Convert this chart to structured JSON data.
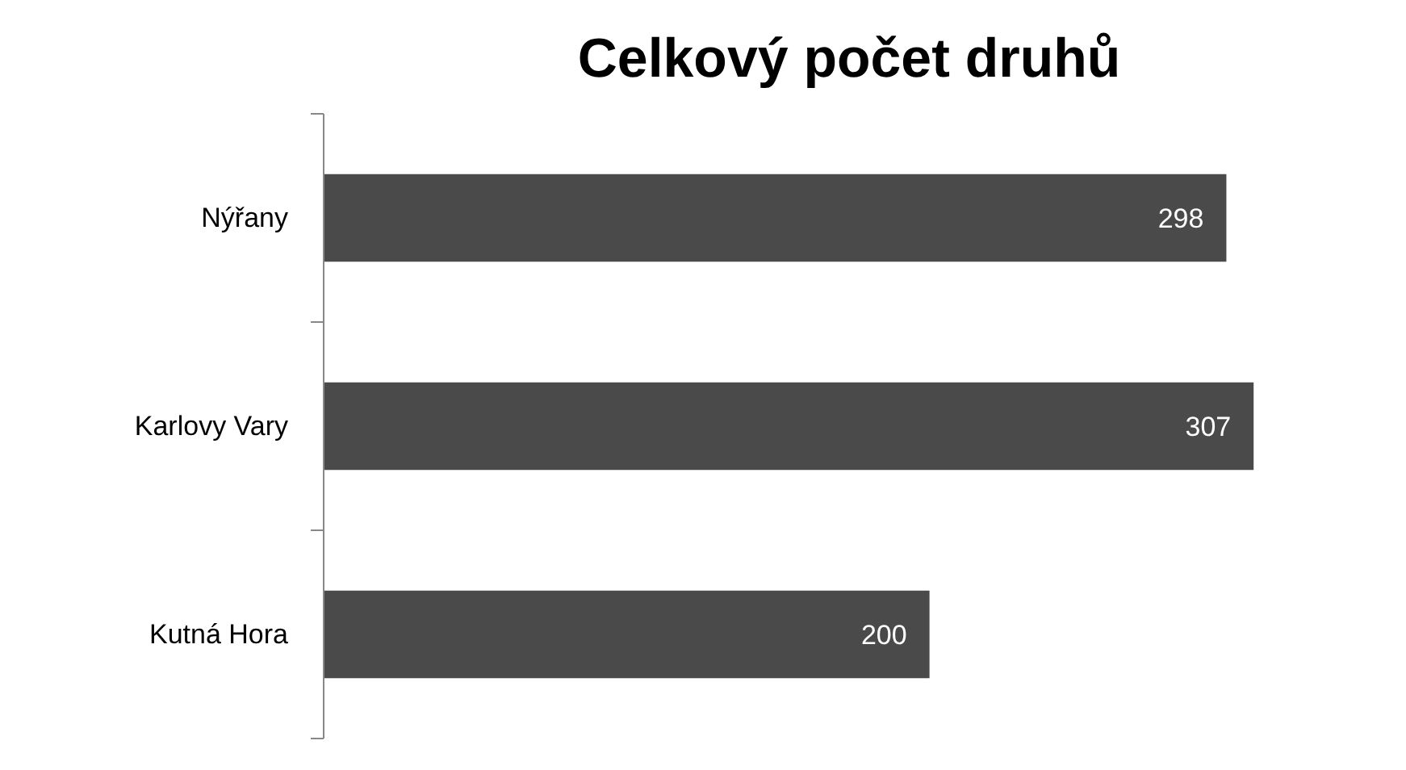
{
  "chart_data": {
    "type": "bar",
    "orientation": "horizontal",
    "title": "Celkový počet druhů",
    "categories": [
      "Nýřany",
      "Karlovy Vary",
      "Kutná Hora"
    ],
    "values": [
      298,
      307,
      200
    ],
    "color": "#4a4a4a",
    "data_labels": true,
    "tick_labels": "y",
    "grid": false
  }
}
